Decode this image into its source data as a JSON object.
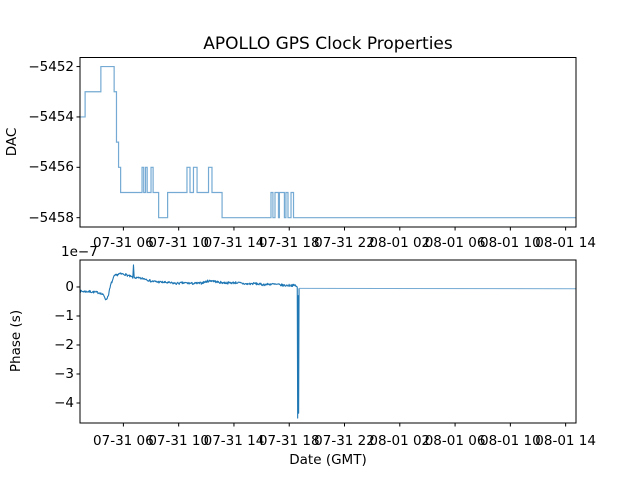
{
  "title": "APOLLO GPS Clock Properties",
  "colors": {
    "line": "#1f77b4",
    "line_light": "#74aad3",
    "spine": "#000000",
    "background": "#ffffff"
  },
  "axes": {
    "top": {
      "ylabel": "DAC",
      "yticklabels": [
        "−5452",
        "−5454",
        "−5456",
        "−5458"
      ],
      "xticklabels": [
        "07-31 06",
        "07-31 10",
        "07-31 14",
        "07-31 18",
        "07-31 22",
        "08-01 02",
        "08-01 06",
        "08-01 10",
        "08-01 14"
      ]
    },
    "bottom": {
      "ylabel": "Phase (s)",
      "xlabel": "Date (GMT)",
      "offset_text": "1e−7",
      "yticklabels": [
        "0",
        "−1",
        "−2",
        "−3",
        "−4"
      ],
      "xticklabels": [
        "07-31 06",
        "07-31 10",
        "07-31 14",
        "07-31 18",
        "07-31 22",
        "08-01 02",
        "08-01 06",
        "08-01 10",
        "08-01 14"
      ]
    }
  },
  "chart_data": [
    {
      "type": "line",
      "subplot": "top",
      "title": "APOLLO GPS Clock Properties",
      "ylabel": "DAC",
      "x_unit": "hours since 07-31 00:00 GMT",
      "xlim": [
        2.86,
        38.75
      ],
      "ylim": [
        -5458.37,
        -5451.64
      ],
      "xticks": [
        6,
        10,
        14,
        18,
        22,
        26,
        30,
        34,
        38
      ],
      "xticklabels": [
        "07-31 06",
        "07-31 10",
        "07-31 14",
        "07-31 18",
        "07-31 22",
        "08-01 02",
        "08-01 06",
        "08-01 10",
        "08-01 14"
      ],
      "yticks": [
        -5452,
        -5454,
        -5456,
        -5458
      ],
      "drawstyle": "steps-post",
      "grid": false,
      "points": [
        [
          2.86,
          -5454
        ],
        [
          3.23,
          -5453
        ],
        [
          4.37,
          -5452
        ],
        [
          5.33,
          -5453
        ],
        [
          5.5,
          -5455
        ],
        [
          5.65,
          -5456
        ],
        [
          5.8,
          -5457
        ],
        [
          7.35,
          -5456
        ],
        [
          7.47,
          -5457
        ],
        [
          7.6,
          -5456
        ],
        [
          7.72,
          -5457
        ],
        [
          8.0,
          -5456
        ],
        [
          8.15,
          -5457
        ],
        [
          8.55,
          -5458
        ],
        [
          9.2,
          -5457
        ],
        [
          10.6,
          -5456
        ],
        [
          10.82,
          -5457
        ],
        [
          11.07,
          -5456
        ],
        [
          11.33,
          -5457
        ],
        [
          12.16,
          -5456
        ],
        [
          12.41,
          -5457
        ],
        [
          13.14,
          -5458
        ],
        [
          16.68,
          -5457
        ],
        [
          16.82,
          -5458
        ],
        [
          16.97,
          -5457
        ],
        [
          17.22,
          -5458
        ],
        [
          17.29,
          -5457
        ],
        [
          17.65,
          -5458
        ],
        [
          17.76,
          -5457
        ],
        [
          17.91,
          -5458
        ],
        [
          18.13,
          -5457
        ],
        [
          18.31,
          -5458
        ],
        [
          38.73,
          -5458
        ]
      ]
    },
    {
      "type": "line",
      "subplot": "bottom",
      "ylabel": "Phase (s)",
      "xlabel": "Date (GMT)",
      "y_scale": "1e-7",
      "offset_text": "1e−7",
      "x_unit": "hours since 07-31 00:00 GMT",
      "xlim": [
        2.86,
        38.75
      ],
      "ylim_1e7": [
        -4.69,
        0.93
      ],
      "xticks": [
        6,
        10,
        14,
        18,
        22,
        26,
        30,
        34,
        38
      ],
      "xticklabels": [
        "07-31 06",
        "07-31 10",
        "07-31 14",
        "07-31 18",
        "07-31 22",
        "08-01 02",
        "08-01 06",
        "08-01 10",
        "08-01 14"
      ],
      "yticks_1e7": [
        0,
        -1,
        -2,
        -3,
        -4
      ],
      "grid": false,
      "noise_amplitude_1e7": 0.04,
      "noise_until_hour": 18.55,
      "envelope_1e7": [
        [
          2.86,
          -0.15
        ],
        [
          3.6,
          -0.16
        ],
        [
          4.3,
          -0.2
        ],
        [
          4.6,
          -0.3
        ],
        [
          4.75,
          -0.45
        ],
        [
          4.9,
          -0.3
        ],
        [
          5.1,
          0.1
        ],
        [
          5.35,
          0.38
        ],
        [
          5.7,
          0.45
        ],
        [
          6.1,
          0.44
        ],
        [
          6.5,
          0.36
        ],
        [
          6.68,
          0.33
        ],
        [
          6.73,
          0.72
        ],
        [
          6.78,
          0.33
        ],
        [
          7.1,
          0.3
        ],
        [
          7.6,
          0.28
        ],
        [
          8.0,
          0.2
        ],
        [
          8.6,
          0.17
        ],
        [
          9.2,
          0.15
        ],
        [
          9.8,
          0.12
        ],
        [
          10.4,
          0.14
        ],
        [
          11.0,
          0.12
        ],
        [
          11.6,
          0.13
        ],
        [
          12.1,
          0.2
        ],
        [
          12.4,
          0.22
        ],
        [
          12.9,
          0.16
        ],
        [
          13.5,
          0.14
        ],
        [
          14.2,
          0.15
        ],
        [
          14.9,
          0.1
        ],
        [
          15.5,
          0.12
        ],
        [
          16.1,
          0.08
        ],
        [
          16.7,
          0.1
        ],
        [
          17.2,
          0.08
        ],
        [
          17.7,
          0.05
        ],
        [
          18.1,
          0.06
        ],
        [
          18.45,
          0.05
        ],
        [
          18.55,
          0.02
        ]
      ],
      "spike_1e7": [
        [
          18.58,
          -0.02
        ],
        [
          18.61,
          -4.52
        ],
        [
          18.645,
          -0.3
        ],
        [
          18.68,
          -4.35
        ],
        [
          18.71,
          -0.05
        ]
      ],
      "tail_1e7": [
        [
          18.71,
          -0.05
        ],
        [
          38.73,
          -0.06
        ]
      ]
    }
  ]
}
